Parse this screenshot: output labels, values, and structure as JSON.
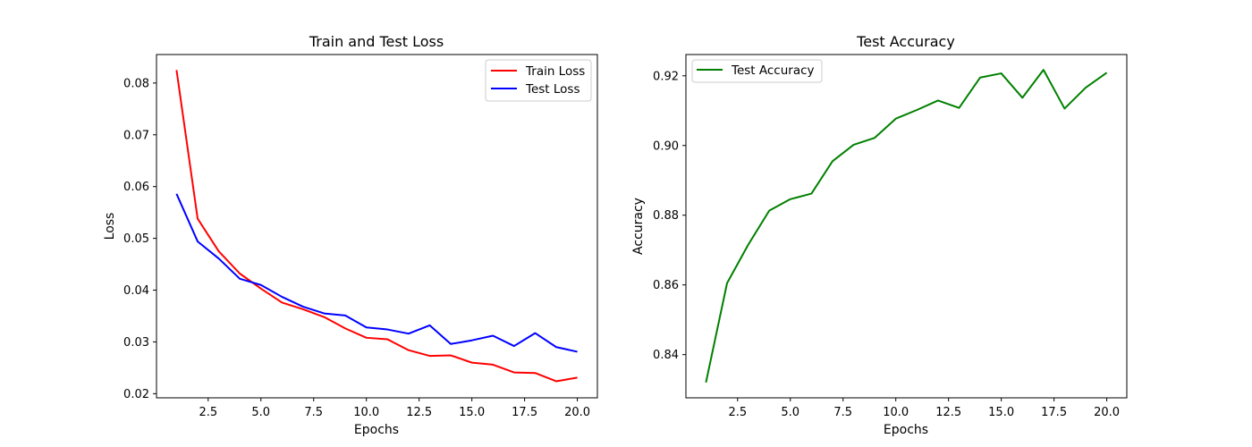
{
  "chart_data": [
    {
      "type": "line",
      "title": "Train and Test Loss",
      "xlabel": "Epochs",
      "ylabel": "Loss",
      "xlim": [
        0.05,
        20.95
      ],
      "ylim": [
        0.0192,
        0.0855
      ],
      "xticks": [
        2.5,
        5.0,
        7.5,
        10.0,
        12.5,
        15.0,
        17.5,
        20.0
      ],
      "xtick_labels": [
        "2.5",
        "5.0",
        "7.5",
        "10.0",
        "12.5",
        "15.0",
        "17.5",
        "20.0"
      ],
      "yticks": [
        0.02,
        0.03,
        0.04,
        0.05,
        0.06,
        0.07,
        0.08
      ],
      "ytick_labels": [
        "0.02",
        "0.03",
        "0.04",
        "0.05",
        "0.06",
        "0.07",
        "0.08"
      ],
      "grid": false,
      "legend_position": "upper-right",
      "x": [
        1,
        2,
        3,
        4,
        5,
        6,
        7,
        8,
        9,
        10,
        11,
        12,
        13,
        14,
        15,
        16,
        17,
        18,
        19,
        20
      ],
      "series": [
        {
          "name": "Train Loss",
          "color": "#ff0000",
          "values": [
            0.0825,
            0.0538,
            0.0475,
            0.0432,
            0.0403,
            0.0376,
            0.0363,
            0.0348,
            0.0326,
            0.0308,
            0.0305,
            0.0284,
            0.0273,
            0.0274,
            0.026,
            0.0256,
            0.0241,
            0.024,
            0.0224,
            0.0231
          ]
        },
        {
          "name": "Test Loss",
          "color": "#0000ff",
          "values": [
            0.0586,
            0.0494,
            0.0461,
            0.0422,
            0.041,
            0.0387,
            0.0368,
            0.0355,
            0.0351,
            0.0328,
            0.0324,
            0.0316,
            0.0332,
            0.0296,
            0.0303,
            0.0312,
            0.0292,
            0.0317,
            0.029,
            0.0281
          ]
        }
      ]
    },
    {
      "type": "line",
      "title": "Test Accuracy",
      "xlabel": "Epochs",
      "ylabel": "Accuracy",
      "xlim": [
        0.05,
        20.95
      ],
      "ylim": [
        0.8276,
        0.9261
      ],
      "xticks": [
        2.5,
        5.0,
        7.5,
        10.0,
        12.5,
        15.0,
        17.5,
        20.0
      ],
      "xtick_labels": [
        "2.5",
        "5.0",
        "7.5",
        "10.0",
        "12.5",
        "15.0",
        "17.5",
        "20.0"
      ],
      "yticks": [
        0.84,
        0.86,
        0.88,
        0.9,
        0.92
      ],
      "ytick_labels": [
        "0.84",
        "0.86",
        "0.88",
        "0.90",
        "0.92"
      ],
      "grid": false,
      "legend_position": "upper-left",
      "x": [
        1,
        2,
        3,
        4,
        5,
        6,
        7,
        8,
        9,
        10,
        11,
        12,
        13,
        14,
        15,
        16,
        17,
        18,
        19,
        20
      ],
      "series": [
        {
          "name": "Test Accuracy",
          "color": "#008000",
          "values": [
            0.832,
            0.8605,
            0.8715,
            0.8813,
            0.8846,
            0.8862,
            0.8955,
            0.9002,
            0.9022,
            0.9077,
            0.9102,
            0.9129,
            0.9108,
            0.9195,
            0.9207,
            0.9137,
            0.9217,
            0.9106,
            0.9166,
            0.9209
          ]
        }
      ]
    }
  ]
}
